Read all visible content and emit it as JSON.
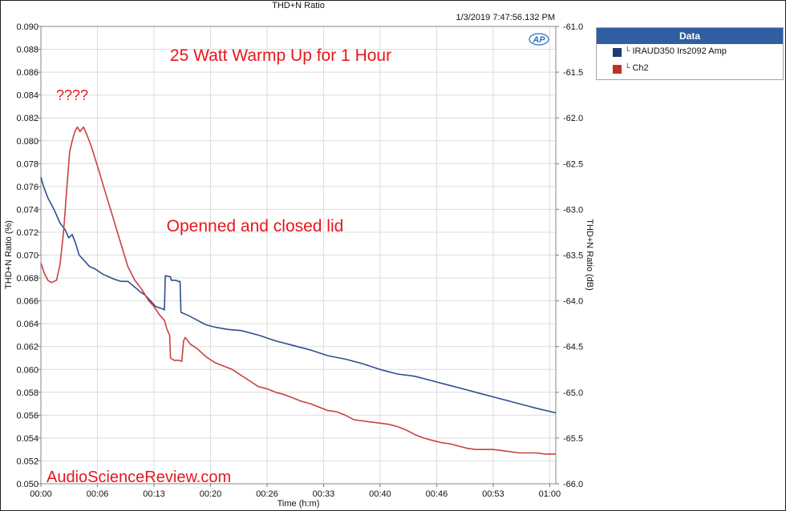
{
  "chart_data": {
    "type": "line",
    "title": "THD+N Ratio",
    "timestamp": "1/3/2019 7:47:56.132 PM",
    "xlabel": "Time (h:m)",
    "ylabel_left": "THD+N Ratio (%)",
    "ylabel_right": "THD+N Ratio (dB)",
    "x_ticks": [
      "00:00",
      "00:06",
      "00:13",
      "00:20",
      "00:26",
      "00:33",
      "00:40",
      "00:46",
      "00:53",
      "01:00"
    ],
    "x_tick_values": [
      0,
      6.5,
      13,
      19.5,
      26,
      32.5,
      39,
      45.5,
      52,
      58.5
    ],
    "xlim": [
      0,
      59.2
    ],
    "ylim_left": [
      0.05,
      0.09
    ],
    "left_ticks": [
      "0.050",
      "0.052",
      "0.054",
      "0.056",
      "0.058",
      "0.060",
      "0.062",
      "0.064",
      "0.066",
      "0.068",
      "0.070",
      "0.072",
      "0.074",
      "0.076",
      "0.078",
      "0.080",
      "0.082",
      "0.084",
      "0.086",
      "0.088",
      "0.090"
    ],
    "ylim_right": [
      -66.0,
      -61.0
    ],
    "right_ticks": [
      "-66.0",
      "-65.5",
      "-65.0",
      "-64.5",
      "-64.0",
      "-63.5",
      "-63.0",
      "-62.5",
      "-62.0",
      "-61.5",
      "-61.0"
    ],
    "grid": true,
    "legend_position": "right",
    "series": [
      {
        "name": "IRAUD350 Irs2092  Amp",
        "color": "#2f4f8f",
        "x": [
          0,
          0.3,
          0.8,
          1.5,
          2.2,
          2.8,
          3.2,
          3.6,
          4.0,
          4.4,
          5.0,
          5.6,
          6.2,
          6.8,
          7.2,
          7.8,
          8.4,
          9.2,
          10.0,
          10.8,
          11.4,
          12.0,
          12.6,
          13.2,
          14.0,
          14.2,
          14.3,
          14.9,
          15.0,
          15.5,
          15.8,
          16.0,
          16.1,
          17.0,
          18.0,
          19.0,
          20.0,
          21.5,
          23.0,
          25.0,
          27.0,
          29.0,
          31.0,
          33.0,
          35.0,
          37.0,
          39.0,
          41.0,
          43.0,
          45.0,
          47.0,
          49.0,
          51.0,
          53.0,
          55.0,
          57.0,
          59.2
        ],
        "y": [
          0.0768,
          0.076,
          0.075,
          0.074,
          0.0728,
          0.0722,
          0.0715,
          0.0718,
          0.071,
          0.07,
          0.0695,
          0.069,
          0.0688,
          0.0685,
          0.0683,
          0.0681,
          0.0679,
          0.0677,
          0.0677,
          0.0672,
          0.0668,
          0.0665,
          0.066,
          0.0655,
          0.0653,
          0.0652,
          0.0682,
          0.0681,
          0.0678,
          0.0678,
          0.0677,
          0.0677,
          0.065,
          0.0647,
          0.0643,
          0.0639,
          0.0637,
          0.0635,
          0.0634,
          0.063,
          0.0625,
          0.0621,
          0.0617,
          0.0612,
          0.0609,
          0.0605,
          0.06,
          0.0596,
          0.0594,
          0.059,
          0.0586,
          0.0582,
          0.0578,
          0.0574,
          0.057,
          0.0566,
          0.0562
        ]
      },
      {
        "name": "Ch2",
        "color": "#c8423e",
        "x": [
          0,
          0.4,
          0.8,
          1.2,
          1.8,
          2.2,
          2.6,
          3.0,
          3.3,
          3.6,
          3.9,
          4.2,
          4.5,
          4.9,
          5.3,
          5.8,
          6.5,
          7.2,
          8.0,
          8.8,
          9.4,
          10.0,
          10.8,
          11.6,
          12.4,
          13.0,
          13.6,
          14.2,
          14.5,
          14.8,
          14.9,
          15.3,
          15.8,
          16.2,
          16.4,
          16.6,
          17.2,
          18.0,
          19.0,
          20.0,
          21.0,
          22.0,
          23.0,
          24.0,
          25.0,
          26.0,
          27.0,
          28.0,
          29.0,
          30.0,
          31.0,
          32.0,
          33.0,
          34.0,
          35.0,
          36.0,
          37.0,
          38.0,
          39.0,
          40.0,
          41.0,
          42.0,
          43.0,
          44.0,
          45.0,
          46.0,
          47.0,
          48.0,
          49.0,
          50.0,
          51.0,
          52.0,
          53.0,
          54.0,
          55.0,
          56.0,
          57.0,
          58.0,
          59.2
        ],
        "y": [
          0.0693,
          0.0684,
          0.0678,
          0.0676,
          0.0678,
          0.0692,
          0.072,
          0.076,
          0.079,
          0.08,
          0.0808,
          0.0812,
          0.0808,
          0.0812,
          0.0805,
          0.0795,
          0.0778,
          0.076,
          0.074,
          0.072,
          0.0705,
          0.069,
          0.0678,
          0.067,
          0.066,
          0.0655,
          0.0648,
          0.0643,
          0.0635,
          0.063,
          0.061,
          0.0608,
          0.0608,
          0.0607,
          0.0625,
          0.0628,
          0.0622,
          0.0618,
          0.0611,
          0.0606,
          0.0603,
          0.06,
          0.0595,
          0.059,
          0.0585,
          0.0583,
          0.058,
          0.0578,
          0.0575,
          0.0572,
          0.057,
          0.0567,
          0.0564,
          0.0563,
          0.056,
          0.0556,
          0.0555,
          0.0554,
          0.0553,
          0.0552,
          0.055,
          0.0547,
          0.0543,
          0.054,
          0.0538,
          0.0536,
          0.0535,
          0.0533,
          0.0531,
          0.053,
          0.053,
          0.053,
          0.0529,
          0.0528,
          0.0527,
          0.0527,
          0.0527,
          0.0526,
          0.0526
        ]
      }
    ],
    "annotations": [
      {
        "text": "25 Watt Warmp Up for 1 Hour",
        "x": 13.7,
        "y": 0.0866
      },
      {
        "text": "????",
        "x": 2.0,
        "y": 0.082
      },
      {
        "text": "Openned and closed lid",
        "x": 13.7,
        "y": 0.0697
      }
    ]
  },
  "legend": {
    "header": "Data",
    "marker": "└",
    "items": [
      {
        "label": "IRAUD350 Irs2092  Amp",
        "color": "#1f3a78"
      },
      {
        "label": "Ch2",
        "color": "#c0302b"
      }
    ]
  },
  "logo_text": "AP",
  "watermark": "AudioScienceReview.com",
  "colors": {
    "annotation": "#e8161b",
    "grid": "#dcdcdc",
    "axis": "#7a7a7a"
  }
}
